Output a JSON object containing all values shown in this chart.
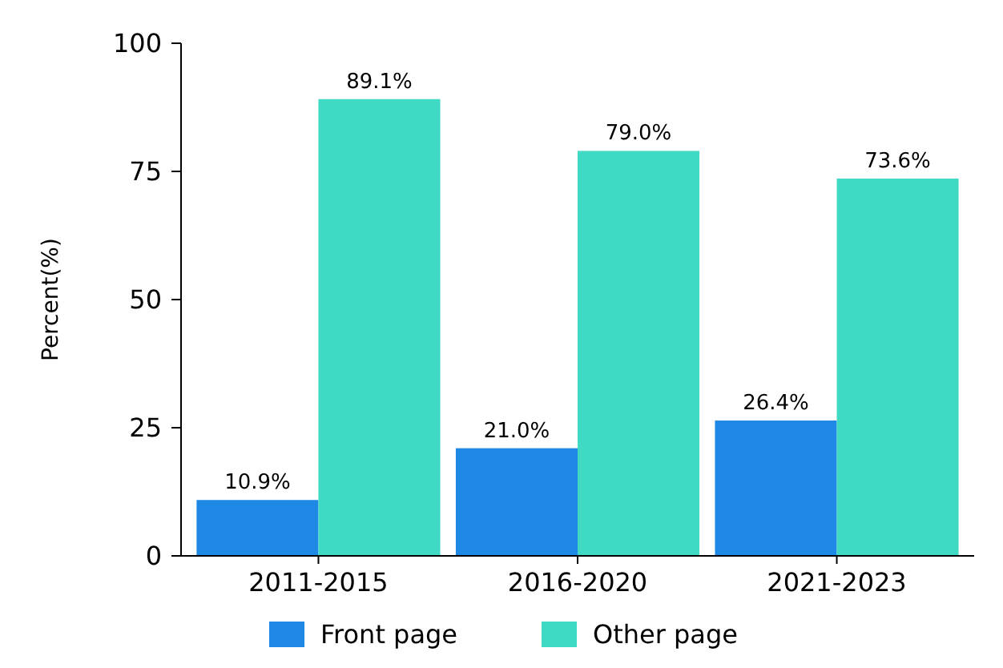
{
  "chart_data": {
    "type": "bar",
    "ylabel": "Percent(%)",
    "categories": [
      "2011-2015",
      "2016-2020",
      "2021-2023"
    ],
    "series": [
      {
        "name": "Front page",
        "color": "#1e88e5",
        "values": [
          10.9,
          21.0,
          26.4
        ],
        "value_labels": [
          "10.9%",
          "21.0%",
          "26.4%"
        ]
      },
      {
        "name": "Other page",
        "color": "#40d9c3",
        "values": [
          89.1,
          79.0,
          73.6
        ],
        "value_labels": [
          "89.1%",
          "79.0%",
          "73.6%"
        ]
      }
    ],
    "ylim": [
      0,
      100
    ],
    "yticks": [
      0,
      25,
      50,
      75,
      100
    ],
    "grid": false,
    "legend": "bottom"
  }
}
